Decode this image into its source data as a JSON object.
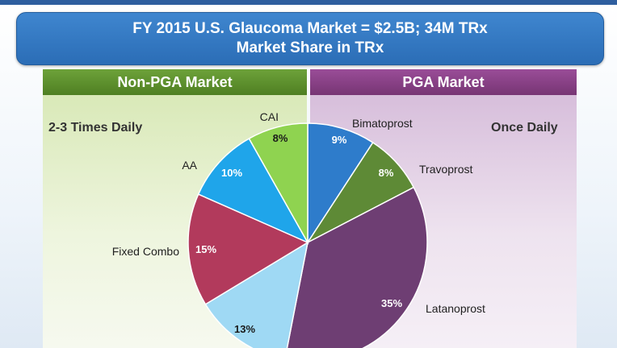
{
  "title": {
    "line1": "FY 2015 U.S. Glaucoma Market = $2.5B; 34M TRx",
    "line2": "Market Share in TRx"
  },
  "panels": {
    "left": {
      "header": "Non-PGA Market",
      "frequency": "2-3 Times Daily"
    },
    "right": {
      "header": "PGA Market",
      "frequency": "Once Daily"
    }
  },
  "colors": {
    "title_bg": "#3479c3",
    "non_pga_header": "#5e9130",
    "pga_header": "#883f86"
  },
  "chart_data": {
    "type": "pie",
    "slices": [
      {
        "name": "Bimatoprost",
        "value": 9,
        "label": "9%",
        "color": "#2e7ccb"
      },
      {
        "name": "Travoprost",
        "value": 8,
        "label": "8%",
        "color": "#5e8a36"
      },
      {
        "name": "Latanoprost",
        "value": 35,
        "label": "35%",
        "color": "#6e3e73"
      },
      {
        "name": "",
        "value": 13,
        "label": "13%",
        "color": "#9fd9f4"
      },
      {
        "name": "Fixed Combo",
        "value": 15,
        "label": "15%",
        "color": "#b23a5c"
      },
      {
        "name": "AA",
        "value": 10,
        "label": "10%",
        "color": "#1fa5ea"
      },
      {
        "name": "CAI",
        "value": 8,
        "label": "8%",
        "color": "#8fd350"
      }
    ]
  }
}
